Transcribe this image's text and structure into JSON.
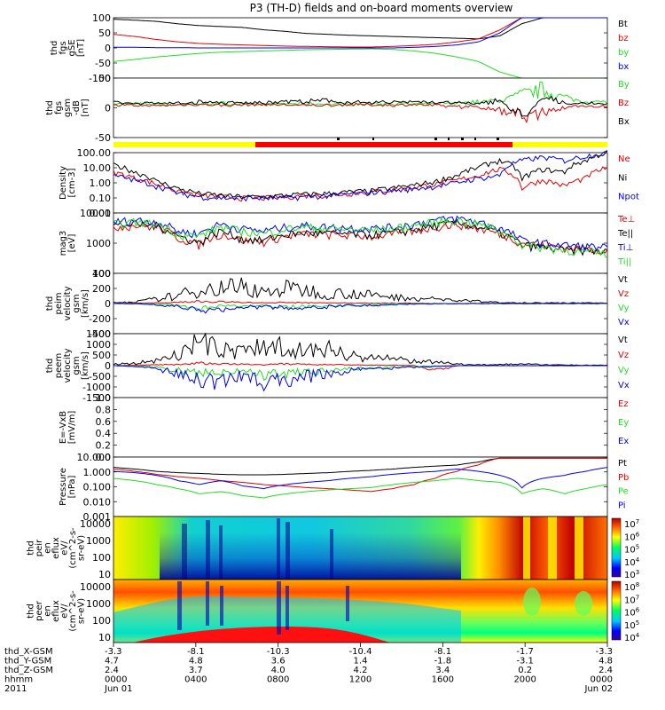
{
  "title": "P3 (TH-D) fields and on-board moments overview",
  "colors": {
    "black": "#000000",
    "red": "#e00000",
    "green": "#22dd22",
    "blue": "#0000ee",
    "yellow": "#ffff00",
    "barred": "#ff0000"
  },
  "chart_data": [
    {
      "type": "line",
      "panel": "fgs_gse",
      "ylabel": [
        "thd",
        "fgs",
        "gSE",
        "[nT]"
      ],
      "ylim": [
        -100,
        100
      ],
      "yticks": [
        "100",
        "50",
        "0",
        "-50",
        "-100"
      ],
      "series": [
        {
          "name": "Bt",
          "color": "#000000",
          "values": [
            95,
            92,
            88,
            80,
            74,
            71,
            68,
            60,
            55,
            48,
            45,
            42,
            40,
            38,
            36,
            34,
            32,
            30,
            40,
            80,
            100,
            100,
            100,
            100
          ]
        },
        {
          "name": "bz",
          "color": "#e00000",
          "values": [
            45,
            38,
            28,
            20,
            15,
            12,
            10,
            8,
            6,
            5,
            4,
            3,
            3,
            5,
            8,
            12,
            20,
            30,
            60,
            100,
            100,
            100,
            100,
            100
          ]
        },
        {
          "name": "by",
          "color": "#22dd22",
          "values": [
            -45,
            -38,
            -30,
            -24,
            -18,
            -14,
            -12,
            -10,
            -8,
            -6,
            -5,
            -4,
            -3,
            -5,
            -10,
            -18,
            -30,
            -45,
            -80,
            -100,
            -100,
            -100,
            -100,
            -100
          ]
        },
        {
          "name": "bx",
          "color": "#0000ee",
          "values": [
            2,
            2,
            1,
            1,
            0,
            0,
            0,
            0,
            0,
            0,
            0,
            0,
            0,
            0,
            2,
            5,
            10,
            20,
            50,
            100,
            100,
            100,
            100,
            100
          ]
        }
      ]
    },
    {
      "type": "line",
      "panel": "fgs_gsm",
      "ylabel": [
        "thd",
        "fgs",
        "gsm",
        "-dB",
        "[nT]"
      ],
      "ylim": [
        -75,
        60
      ],
      "yticks": [
        "50",
        "0",
        "-50"
      ],
      "series": [
        {
          "name": "By",
          "color": "#22dd22",
          "values": [
            2,
            3,
            1,
            0,
            2,
            4,
            1,
            0,
            3,
            2,
            1,
            0,
            2,
            3,
            1,
            2,
            5,
            8,
            12,
            30,
            45,
            20,
            10,
            8
          ]
        },
        {
          "name": "Bz",
          "color": "#e00000",
          "values": [
            -3,
            -2,
            -4,
            -1,
            0,
            -2,
            -1,
            0,
            -1,
            -3,
            -2,
            0,
            -1,
            -2,
            0,
            -3,
            -5,
            -10,
            -20,
            -35,
            -25,
            -10,
            -5,
            -5
          ]
        },
        {
          "name": "Bx",
          "color": "#000000",
          "values": [
            5,
            4,
            6,
            3,
            8,
            5,
            4,
            6,
            10,
            8,
            12,
            6,
            5,
            8,
            10,
            6,
            4,
            2,
            15,
            -40,
            20,
            5,
            3,
            2
          ]
        }
      ]
    },
    {
      "type": "line",
      "panel": "density",
      "ylabel": [
        "Density",
        "[cm-3]"
      ],
      "yscale": "log",
      "ylim": [
        0.01,
        100
      ],
      "yticks": [
        "100.00",
        "10.00",
        "1.00",
        "0.10",
        "0.01"
      ],
      "series": [
        {
          "name": "Ne",
          "color": "#e00000",
          "values": [
            5,
            2,
            0.8,
            0.25,
            0.15,
            0.12,
            0.1,
            0.1,
            0.12,
            0.15,
            0.15,
            0.2,
            0.25,
            0.35,
            0.5,
            0.8,
            1.5,
            3,
            8,
            0.4,
            1.5,
            0.6,
            2,
            10
          ]
        },
        {
          "name": "Ni",
          "color": "#000000",
          "values": [
            15,
            5,
            1.2,
            0.4,
            0.2,
            0.15,
            0.12,
            0.12,
            0.15,
            0.18,
            0.2,
            0.25,
            0.3,
            0.45,
            0.7,
            1.2,
            3,
            10,
            30,
            1.5,
            8,
            5,
            30,
            100
          ]
        },
        {
          "name": "Npot",
          "color": "#0000ee",
          "values": [
            3,
            1.5,
            0.6,
            0.2,
            0.12,
            0.1,
            0.1,
            0.1,
            0.1,
            0.12,
            0.14,
            0.18,
            0.22,
            0.3,
            0.4,
            0.6,
            1,
            2,
            3,
            30,
            50,
            30,
            60,
            100
          ]
        }
      ]
    },
    {
      "type": "line",
      "panel": "temperature",
      "ylabel": [
        "mag3",
        "[eV]"
      ],
      "yscale": "log",
      "ylim": [
        30,
        12000
      ],
      "yticks": [
        "10000",
        "1000",
        "100"
      ],
      "series": [
        {
          "name": "Te⊥",
          "color": "#e00000",
          "values": [
            3000,
            3500,
            3000,
            1000,
            500,
            1500,
            800,
            700,
            1200,
            1500,
            1400,
            1300,
            1200,
            1500,
            2000,
            3000,
            4000,
            2500,
            1500,
            600,
            500,
            400,
            350,
            300
          ]
        },
        {
          "name": "Te||",
          "color": "#000000",
          "values": [
            3500,
            4000,
            3500,
            1200,
            600,
            2000,
            900,
            800,
            1400,
            1700,
            1600,
            1500,
            1400,
            1700,
            2200,
            3500,
            4500,
            3000,
            1600,
            500,
            400,
            300,
            300,
            250
          ]
        },
        {
          "name": "Ti⊥",
          "color": "#0000ee",
          "values": [
            5000,
            6000,
            5000,
            2000,
            1500,
            4000,
            2500,
            2000,
            3000,
            3500,
            3000,
            2800,
            2600,
            3000,
            4000,
            6000,
            7000,
            5000,
            2500,
            800,
            600,
            500,
            450,
            400
          ]
        },
        {
          "name": "Ti||",
          "color": "#22dd22",
          "values": [
            4000,
            5000,
            4000,
            1500,
            1200,
            3000,
            2000,
            1500,
            2500,
            3000,
            2600,
            2400,
            2200,
            2600,
            3500,
            5000,
            6000,
            4000,
            2000,
            500,
            400,
            300,
            250,
            200
          ]
        }
      ]
    },
    {
      "type": "line",
      "panel": "peim_velocity",
      "ylabel": [
        "thd",
        "peim",
        "velocity",
        "gsm",
        "[km/s]"
      ],
      "ylim": [
        -420,
        420
      ],
      "yticks": [
        "400",
        "200",
        "0",
        "-200",
        "-400"
      ],
      "series": [
        {
          "name": "Vt",
          "color": "#000000",
          "values": [
            20,
            30,
            80,
            150,
            250,
            300,
            320,
            200,
            280,
            250,
            180,
            200,
            150,
            120,
            100,
            80,
            60,
            40,
            20,
            15,
            10,
            10,
            10,
            10
          ]
        },
        {
          "name": "Vz",
          "color": "#e00000",
          "values": [
            0,
            5,
            10,
            20,
            40,
            30,
            20,
            10,
            20,
            15,
            10,
            10,
            5,
            5,
            5,
            0,
            0,
            0,
            0,
            0,
            0,
            0,
            0,
            0
          ]
        },
        {
          "name": "Vy",
          "color": "#22dd22",
          "values": [
            0,
            -5,
            -10,
            -40,
            -80,
            -60,
            -50,
            -40,
            -60,
            -50,
            -40,
            -30,
            -20,
            -10,
            -5,
            0,
            0,
            0,
            0,
            0,
            0,
            0,
            0,
            0
          ]
        },
        {
          "name": "Vx",
          "color": "#0000ee",
          "values": [
            0,
            -5,
            -20,
            -60,
            -120,
            -100,
            -80,
            -60,
            -90,
            -70,
            -60,
            -40,
            -30,
            -20,
            -10,
            -5,
            0,
            0,
            0,
            0,
            0,
            0,
            0,
            0
          ]
        }
      ]
    },
    {
      "type": "line",
      "panel": "peem_velocity",
      "ylabel": [
        "thd",
        "peem",
        "velocity",
        "gsm",
        "[km/s]"
      ],
      "ylim": [
        -1500,
        1500
      ],
      "yticks": [
        "1500",
        "1000",
        "500",
        "0",
        "-500",
        "-1000",
        "-1500"
      ],
      "series": [
        {
          "name": "Vt",
          "color": "#000000",
          "values": [
            100,
            150,
            300,
            800,
            1400,
            1000,
            900,
            1200,
            1300,
            900,
            1000,
            700,
            500,
            400,
            300,
            200,
            100,
            50,
            80,
            100,
            60,
            40,
            30,
            30
          ]
        },
        {
          "name": "Vz",
          "color": "#e00000",
          "values": [
            0,
            20,
            50,
            80,
            150,
            100,
            80,
            60,
            100,
            80,
            60,
            40,
            30,
            20,
            10,
            -300,
            0,
            0,
            0,
            0,
            0,
            0,
            0,
            0
          ]
        },
        {
          "name": "Vy",
          "color": "#22dd22",
          "values": [
            0,
            -50,
            -100,
            -300,
            -500,
            -400,
            -300,
            -600,
            -500,
            -400,
            -300,
            -200,
            -150,
            -100,
            -50,
            -20,
            0,
            0,
            0,
            0,
            0,
            0,
            0,
            0
          ]
        },
        {
          "name": "Vx",
          "color": "#0000ee",
          "values": [
            0,
            -50,
            -150,
            -600,
            -1100,
            -900,
            -700,
            -1000,
            -900,
            -700,
            -500,
            -300,
            -200,
            -150,
            -100,
            -50,
            0,
            0,
            0,
            0,
            0,
            0,
            0,
            0
          ]
        }
      ]
    },
    {
      "type": "line",
      "panel": "efield",
      "ylabel": [
        "E=-VxB",
        "[mV/m]"
      ],
      "ylim": [
        0,
        1
      ],
      "yticks": [
        "1.0",
        "0.8",
        "0.6",
        "0.4",
        "0.2",
        "0.0"
      ],
      "series": [
        {
          "name": "Ez",
          "color": "#e00000",
          "values": []
        },
        {
          "name": "Ey",
          "color": "#22dd22",
          "values": []
        },
        {
          "name": "Ex",
          "color": "#0000ee",
          "values": []
        }
      ]
    },
    {
      "type": "line",
      "panel": "pressure",
      "ylabel": [
        "Pressure",
        "[nPa]"
      ],
      "yscale": "log",
      "ylim": [
        0.0004,
        12
      ],
      "yticks": [
        "10.000",
        "1.000",
        "0.100",
        "0.010",
        "0.001"
      ],
      "series": [
        {
          "name": "Pt",
          "color": "#000000",
          "values": [
            2,
            1.5,
            1,
            0.8,
            0.7,
            0.6,
            0.55,
            0.55,
            0.6,
            0.7,
            0.8,
            1,
            1.2,
            1.5,
            2,
            2.5,
            3,
            5,
            10,
            10,
            10,
            10,
            10,
            10
          ]
        },
        {
          "name": "Pb",
          "color": "#e00000",
          "values": [
            1.5,
            1,
            0.6,
            0.4,
            0.3,
            0.2,
            0.15,
            0.1,
            0.08,
            0.06,
            0.05,
            0.04,
            0.03,
            0.05,
            0.1,
            0.3,
            1,
            3,
            10,
            10,
            10,
            10,
            10,
            10
          ]
        },
        {
          "name": "Pe",
          "color": "#22dd22",
          "values": [
            0.3,
            0.2,
            0.1,
            0.05,
            0.02,
            0.03,
            0.015,
            0.01,
            0.02,
            0.03,
            0.04,
            0.05,
            0.06,
            0.1,
            0.15,
            0.2,
            0.3,
            0.2,
            0.15,
            0.02,
            0.05,
            0.02,
            0.05,
            0.1
          ]
        },
        {
          "name": "Pi",
          "color": "#0000ee",
          "values": [
            1,
            0.8,
            0.5,
            0.2,
            0.1,
            0.2,
            0.08,
            0.05,
            0.1,
            0.15,
            0.2,
            0.3,
            0.4,
            0.6,
            0.8,
            1,
            1.5,
            1,
            0.5,
            0.05,
            0.3,
            0.5,
            1,
            2
          ]
        }
      ]
    },
    {
      "type": "heatmap",
      "panel": "peir_spectrogram",
      "ylabel": [
        "thd",
        "peir",
        "en",
        "eflux",
        "eV/",
        "(cm^2-s-",
        "sr-eV)"
      ],
      "yticks": [
        "10000",
        "1000",
        "100",
        "10"
      ],
      "colorbar": {
        "labels": [
          "10^7",
          "10^6",
          "10^5",
          "10^4",
          "10^3"
        ]
      }
    },
    {
      "type": "heatmap",
      "panel": "peer_spectrogram",
      "ylabel": [
        "thd",
        "peer",
        "en",
        "eflux",
        "eV/",
        "(cm^2-s-",
        "sr-eV)"
      ],
      "yticks": [
        "10000",
        "1000",
        "100",
        "10"
      ],
      "colorbar": {
        "labels": [
          "10^8",
          "10^7",
          "10^6",
          "10^5",
          "10^4"
        ]
      }
    }
  ],
  "time_axis": {
    "row_labels": [
      "thd_X-GSM",
      "thd_Y-GSM",
      "thd_Z-GSM",
      "hhmm",
      "2011"
    ],
    "columns": [
      {
        "x_gsm": "-3.3",
        "y_gsm": "4.7",
        "z_gsm": "2.4",
        "hhmm": "0000",
        "date": "Jun 01"
      },
      {
        "x_gsm": "-8.1",
        "y_gsm": "4.8",
        "z_gsm": "3.7",
        "hhmm": "0400",
        "date": ""
      },
      {
        "x_gsm": "-10.3",
        "y_gsm": "3.6",
        "z_gsm": "4.0",
        "hhmm": "0800",
        "date": ""
      },
      {
        "x_gsm": "-10.4",
        "y_gsm": "1.4",
        "z_gsm": "4.2",
        "hhmm": "1200",
        "date": ""
      },
      {
        "x_gsm": "-8.1",
        "y_gsm": "-1.8",
        "z_gsm": "3.4",
        "hhmm": "1600",
        "date": ""
      },
      {
        "x_gsm": "-1.7",
        "y_gsm": "-3.1",
        "z_gsm": "0.2",
        "hhmm": "2000",
        "date": ""
      },
      {
        "x_gsm": "-3.3",
        "y_gsm": "4.8",
        "z_gsm": "2.4",
        "hhmm": "0000",
        "date": "Jun 02"
      }
    ]
  }
}
